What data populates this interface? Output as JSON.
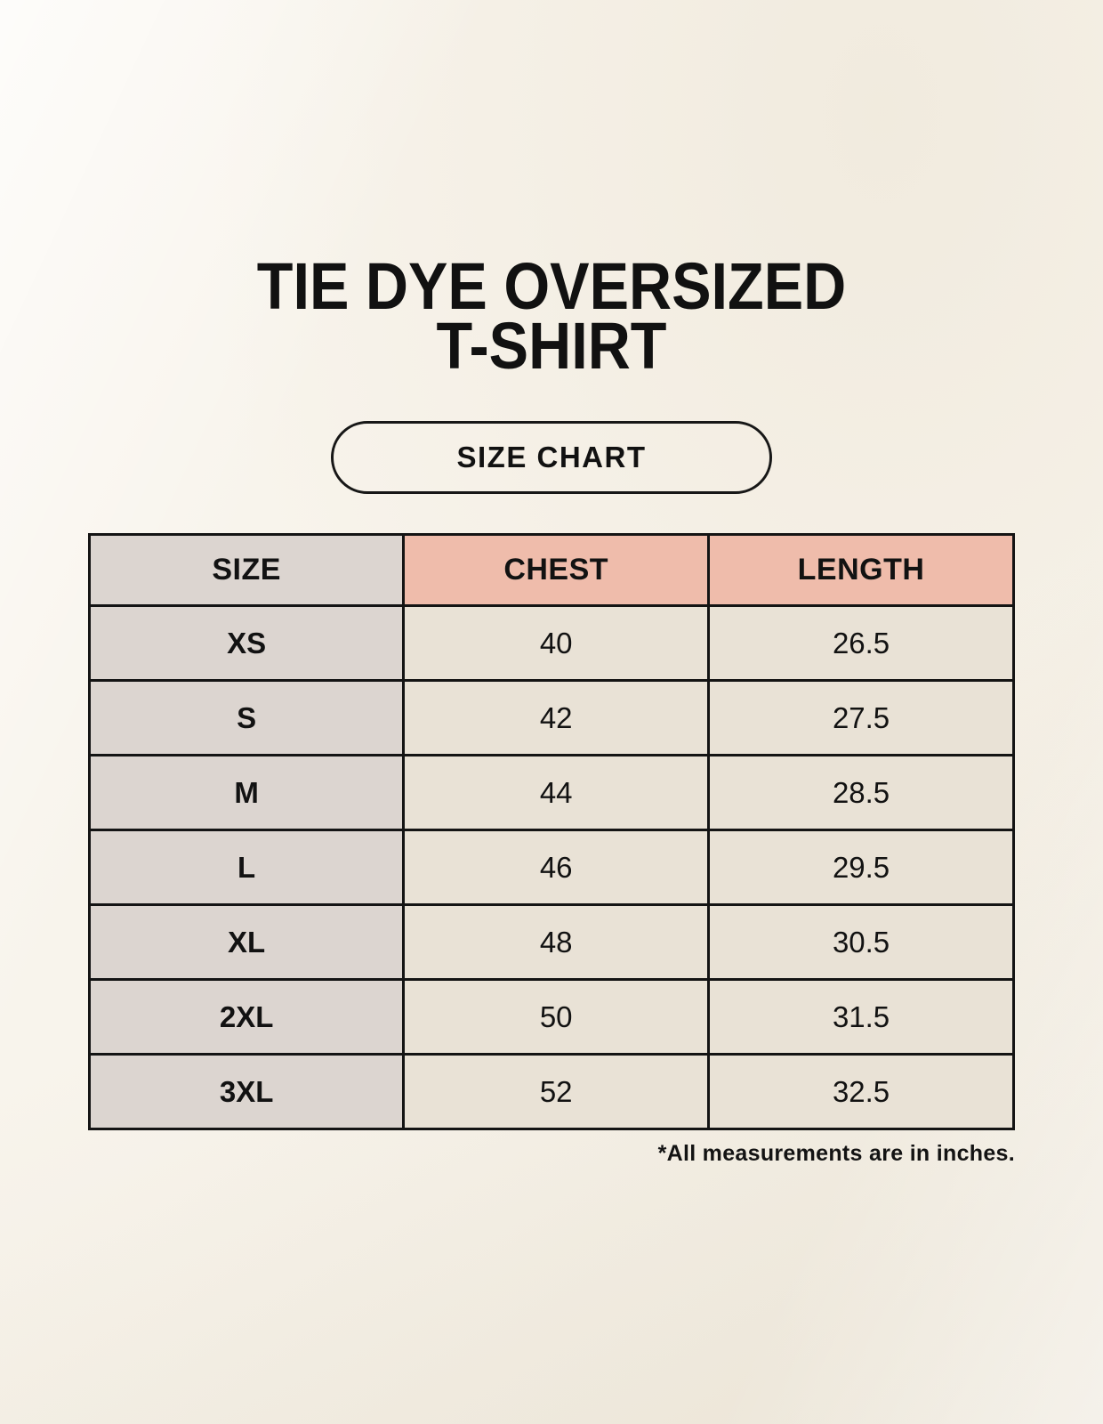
{
  "header": {
    "title_line1": "TIE DYE OVERSIZED",
    "title_line2": "T-SHIRT"
  },
  "size_chart_button": {
    "label": "SIZE CHART"
  },
  "table": {
    "columns": [
      "SIZE",
      "CHEST",
      "LENGTH"
    ],
    "rows": [
      {
        "size": "XS",
        "chest": "40",
        "length": "26.5"
      },
      {
        "size": "S",
        "chest": "42",
        "length": "27.5"
      },
      {
        "size": "M",
        "chest": "44",
        "length": "28.5"
      },
      {
        "size": "L",
        "chest": "46",
        "length": "29.5"
      },
      {
        "size": "XL",
        "chest": "48",
        "length": "30.5"
      },
      {
        "size": "2XL",
        "chest": "50",
        "length": "31.5"
      },
      {
        "size": "3XL",
        "chest": "52",
        "length": "32.5"
      }
    ]
  },
  "footnote": "*All measurements are in inches.",
  "colors": {
    "page_bg": "#f8f4ec",
    "table_border": "#141414",
    "size_column_bg": "#dcd5d0",
    "measure_header_bg": "#efbcab",
    "data_cell_bg": "#e9e2d6",
    "text": "#121212"
  }
}
